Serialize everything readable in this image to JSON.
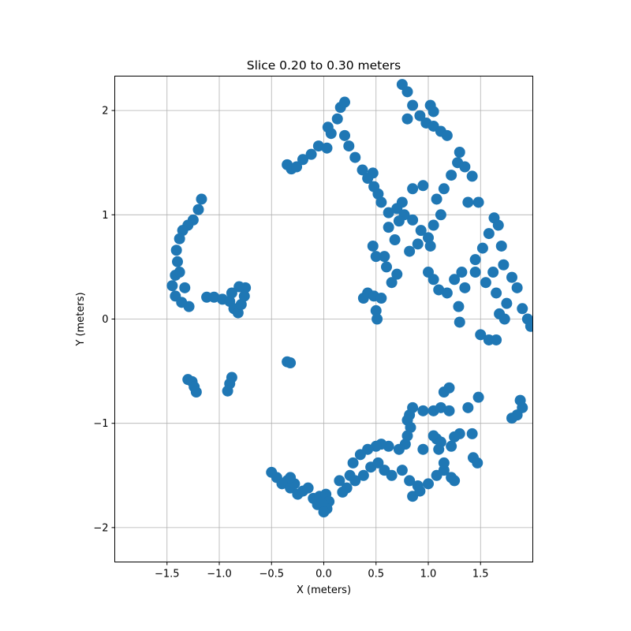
{
  "chart_data": {
    "type": "scatter",
    "title": "Slice 0.20 to 0.30 meters",
    "xlabel": "X (meters)",
    "ylabel": "Y (meters)",
    "xlim": [
      -2.0,
      2.0
    ],
    "ylim": [
      -2.33,
      2.33
    ],
    "xticks": [
      -1.5,
      -1.0,
      -0.5,
      0.0,
      0.5,
      1.0,
      1.5
    ],
    "xtick_labels": [
      "−1.5",
      "−1.0",
      "−0.5",
      "0.0",
      "0.5",
      "1.0",
      "1.5"
    ],
    "yticks": [
      -2,
      -1,
      0,
      1,
      2
    ],
    "ytick_labels": [
      "−2",
      "−1",
      "0",
      "1",
      "2"
    ],
    "grid": true,
    "point_color": "#1f77b4",
    "series": [
      {
        "clusters": [
          [
            [
              -1.17,
              1.15
            ],
            [
              -1.2,
              1.05
            ],
            [
              -1.25,
              0.95
            ],
            [
              -1.3,
              0.9
            ],
            [
              -1.35,
              0.85
            ],
            [
              -1.38,
              0.77
            ],
            [
              -1.41,
              0.66
            ],
            [
              -1.4,
              0.55
            ],
            [
              -1.42,
              0.42
            ],
            [
              -1.45,
              0.32
            ],
            [
              -1.42,
              0.22
            ],
            [
              -1.36,
              0.16
            ],
            [
              -1.29,
              0.12
            ],
            [
              -1.33,
              0.3
            ],
            [
              -1.38,
              0.45
            ]
          ],
          [
            [
              -1.12,
              0.21
            ],
            [
              -1.05,
              0.21
            ],
            [
              -0.97,
              0.19
            ],
            [
              -0.9,
              0.17
            ],
            [
              -0.86,
              0.1
            ],
            [
              -0.82,
              0.06
            ],
            [
              -0.79,
              0.14
            ],
            [
              -0.76,
              0.22
            ],
            [
              -0.75,
              0.3
            ],
            [
              -0.81,
              0.31
            ],
            [
              -0.88,
              0.25
            ]
          ],
          [
            [
              -1.3,
              -0.58
            ],
            [
              -1.26,
              -0.6
            ],
            [
              -1.24,
              -0.65
            ],
            [
              -1.22,
              -0.7
            ],
            [
              -0.88,
              -0.56
            ],
            [
              -0.9,
              -0.62
            ],
            [
              -0.92,
              -0.69
            ]
          ],
          [
            [
              -0.35,
              -0.41
            ],
            [
              -0.32,
              -0.42
            ]
          ],
          [
            [
              -0.35,
              1.48
            ],
            [
              -0.31,
              1.44
            ],
            [
              -0.26,
              1.46
            ],
            [
              -0.2,
              1.53
            ],
            [
              -0.12,
              1.58
            ],
            [
              -0.05,
              1.66
            ],
            [
              0.03,
              1.64
            ],
            [
              0.07,
              1.78
            ],
            [
              0.04,
              1.84
            ],
            [
              0.13,
              1.92
            ],
            [
              0.16,
              2.03
            ],
            [
              0.2,
              2.08
            ],
            [
              0.2,
              1.76
            ],
            [
              0.24,
              1.66
            ],
            [
              0.3,
              1.55
            ],
            [
              0.37,
              1.43
            ],
            [
              0.42,
              1.35
            ],
            [
              0.48,
              1.27
            ],
            [
              0.47,
              1.4
            ],
            [
              0.52,
              1.2
            ]
          ],
          [
            [
              0.55,
              1.12
            ],
            [
              0.62,
              1.02
            ],
            [
              0.7,
              1.06
            ],
            [
              0.77,
              1.0
            ],
            [
              0.85,
              0.95
            ],
            [
              0.93,
              0.85
            ],
            [
              1.0,
              0.78
            ],
            [
              1.02,
              0.7
            ],
            [
              1.08,
              1.15
            ],
            [
              1.15,
              1.25
            ],
            [
              1.22,
              1.38
            ],
            [
              1.28,
              1.5
            ],
            [
              1.3,
              1.6
            ],
            [
              1.35,
              1.46
            ],
            [
              1.42,
              1.37
            ],
            [
              1.48,
              1.12
            ],
            [
              1.38,
              1.12
            ],
            [
              0.75,
              1.12
            ],
            [
              0.85,
              1.25
            ],
            [
              0.95,
              1.28
            ],
            [
              0.62,
              0.88
            ],
            [
              0.68,
              0.76
            ],
            [
              0.82,
              0.65
            ],
            [
              0.9,
              0.72
            ],
            [
              0.47,
              0.7
            ],
            [
              0.5,
              0.6
            ],
            [
              0.58,
              0.6
            ],
            [
              0.6,
              0.5
            ],
            [
              0.65,
              0.35
            ],
            [
              0.7,
              0.43
            ],
            [
              0.72,
              0.94
            ],
            [
              1.05,
              0.9
            ],
            [
              1.12,
              1.0
            ]
          ],
          [
            [
              0.75,
              2.25
            ],
            [
              0.8,
              2.18
            ],
            [
              0.85,
              2.05
            ],
            [
              0.8,
              1.92
            ],
            [
              0.92,
              1.95
            ],
            [
              0.98,
              1.88
            ],
            [
              1.05,
              1.85
            ],
            [
              1.12,
              1.8
            ],
            [
              1.18,
              1.76
            ],
            [
              1.02,
              2.05
            ],
            [
              1.05,
              1.99
            ]
          ],
          [
            [
              0.38,
              0.2
            ],
            [
              0.42,
              0.25
            ],
            [
              0.48,
              0.22
            ],
            [
              0.55,
              0.2
            ],
            [
              0.5,
              0.08
            ],
            [
              0.51,
              0.0
            ]
          ],
          [
            [
              1.0,
              0.45
            ],
            [
              1.05,
              0.38
            ],
            [
              1.1,
              0.28
            ],
            [
              1.18,
              0.25
            ],
            [
              1.25,
              0.38
            ],
            [
              1.32,
              0.45
            ],
            [
              1.45,
              0.57
            ],
            [
              1.52,
              0.68
            ],
            [
              1.58,
              0.82
            ],
            [
              1.63,
              0.97
            ],
            [
              1.67,
              0.9
            ],
            [
              1.7,
              0.7
            ],
            [
              1.72,
              0.52
            ],
            [
              1.8,
              0.4
            ],
            [
              1.85,
              0.3
            ],
            [
              1.9,
              0.1
            ],
            [
              1.95,
              0.0
            ],
            [
              1.98,
              -0.07
            ],
            [
              1.75,
              0.15
            ],
            [
              1.65,
              0.25
            ],
            [
              1.55,
              0.35
            ],
            [
              1.62,
              0.45
            ],
            [
              1.45,
              0.45
            ],
            [
              1.35,
              0.3
            ],
            [
              1.68,
              0.05
            ],
            [
              1.73,
              0.0
            ],
            [
              1.29,
              0.12
            ],
            [
              1.3,
              -0.03
            ]
          ],
          [
            [
              1.5,
              -0.15
            ],
            [
              1.58,
              -0.2
            ],
            [
              1.65,
              -0.2
            ],
            [
              1.48,
              -0.75
            ],
            [
              1.38,
              -0.85
            ],
            [
              1.88,
              -0.78
            ],
            [
              1.9,
              -0.85
            ],
            [
              1.85,
              -0.92
            ],
            [
              1.8,
              -0.95
            ],
            [
              1.15,
              -0.7
            ],
            [
              1.2,
              -0.66
            ]
          ],
          [
            [
              0.85,
              -0.85
            ],
            [
              0.95,
              -0.88
            ],
            [
              1.05,
              -0.88
            ],
            [
              1.12,
              -0.85
            ],
            [
              1.2,
              -0.88
            ],
            [
              0.82,
              -0.92
            ],
            [
              0.8,
              -0.97
            ],
            [
              0.83,
              -1.04
            ],
            [
              0.8,
              -1.12
            ],
            [
              0.78,
              -1.2
            ],
            [
              0.72,
              -1.25
            ],
            [
              0.62,
              -1.22
            ],
            [
              0.55,
              -1.2
            ],
            [
              0.5,
              -1.22
            ],
            [
              0.42,
              -1.25
            ],
            [
              0.35,
              -1.3
            ],
            [
              0.28,
              -1.38
            ],
            [
              0.25,
              -1.5
            ],
            [
              0.22,
              -1.62
            ],
            [
              0.18,
              -1.66
            ],
            [
              0.15,
              -1.55
            ],
            [
              0.3,
              -1.55
            ],
            [
              0.38,
              -1.5
            ],
            [
              0.45,
              -1.42
            ],
            [
              0.52,
              -1.38
            ],
            [
              0.58,
              -1.45
            ],
            [
              0.65,
              -1.5
            ]
          ],
          [
            [
              0.75,
              -1.45
            ],
            [
              0.82,
              -1.55
            ],
            [
              0.9,
              -1.6
            ],
            [
              0.85,
              -1.7
            ],
            [
              0.92,
              -1.65
            ],
            [
              1.0,
              -1.58
            ],
            [
              1.08,
              -1.5
            ],
            [
              1.15,
              -1.45
            ],
            [
              1.22,
              -1.52
            ],
            [
              1.25,
              -1.55
            ],
            [
              1.15,
              -1.38
            ],
            [
              1.1,
              -1.25
            ],
            [
              1.08,
              -1.15
            ],
            [
              1.05,
              -1.12
            ],
            [
              0.95,
              -1.25
            ],
            [
              1.12,
              -1.18
            ],
            [
              1.22,
              -1.22
            ],
            [
              1.3,
              -1.1
            ],
            [
              1.42,
              -1.1
            ],
            [
              1.43,
              -1.33
            ],
            [
              1.47,
              -1.38
            ],
            [
              1.25,
              -1.13
            ]
          ],
          [
            [
              -0.5,
              -1.47
            ],
            [
              -0.45,
              -1.52
            ],
            [
              -0.4,
              -1.58
            ],
            [
              -0.35,
              -1.55
            ],
            [
              -0.32,
              -1.62
            ],
            [
              -0.28,
              -1.58
            ],
            [
              -0.25,
              -1.68
            ],
            [
              -0.2,
              -1.65
            ],
            [
              -0.15,
              -1.62
            ],
            [
              -0.1,
              -1.72
            ],
            [
              -0.06,
              -1.78
            ],
            [
              -0.04,
              -1.7
            ],
            [
              0.02,
              -1.68
            ],
            [
              0.05,
              -1.75
            ],
            [
              0.03,
              -1.82
            ],
            [
              -0.02,
              -1.77
            ],
            [
              -0.32,
              -1.52
            ],
            [
              0.0,
              -1.85
            ]
          ]
        ]
      }
    ]
  }
}
